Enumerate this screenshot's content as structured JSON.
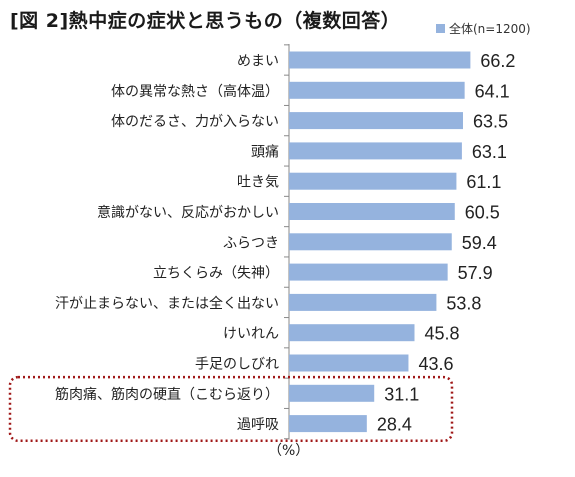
{
  "title": "[図 2]熱中症の症状と思うもの（複数回答）",
  "legend_label": "全体(n=1200)",
  "unit_label": "（%）",
  "colors": {
    "bar": "#95b3de",
    "highlight_border": "#a01818",
    "axis": "#888888"
  },
  "chart_data": {
    "type": "bar",
    "orientation": "horizontal",
    "categories": [
      "めまい",
      "体の異常な熱さ（高体温）",
      "体のだるさ、力が入らない",
      "頭痛",
      "吐き気",
      "意識がない、反応がおかしい",
      "ふらつき",
      "立ちくらみ（失神）",
      "汗が止まらない、または全く出ない",
      "けいれん",
      "手足のしびれ",
      "筋肉痛、筋肉の硬直（こむら返り）",
      "過呼吸"
    ],
    "series": [
      {
        "name": "全体(n=1200)",
        "values": [
          66.2,
          64.1,
          63.5,
          63.1,
          61.1,
          60.5,
          59.4,
          57.9,
          53.8,
          45.8,
          43.6,
          31.1,
          28.4
        ]
      }
    ],
    "xlim": [
      0,
      100
    ],
    "highlighted_categories": [
      "筋肉痛、筋肉の硬直（こむら返り）",
      "過呼吸"
    ]
  }
}
